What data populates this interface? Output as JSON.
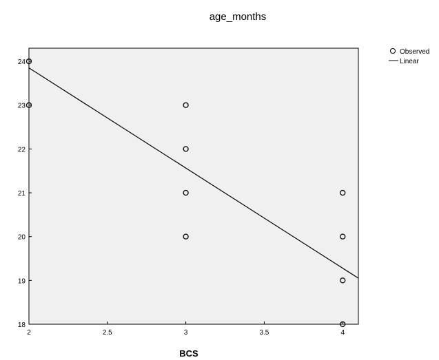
{
  "chart_data": {
    "type": "scatter",
    "title": "age_months",
    "xlabel": "BCS",
    "ylabel": "",
    "xlim": [
      2,
      4.1
    ],
    "ylim": [
      18,
      24.3
    ],
    "x_ticks": [
      2,
      2.5,
      3,
      3.5,
      4
    ],
    "x_tick_labels": [
      "2",
      "2.5",
      "3",
      "3.5",
      "4"
    ],
    "y_ticks": [
      18,
      19,
      20,
      21,
      22,
      23,
      24
    ],
    "y_tick_labels": [
      "18",
      "19",
      "20",
      "21",
      "22",
      "23",
      "24"
    ],
    "grid": false,
    "legend_position": "top-right",
    "background_color": "#f0f0f0",
    "series": [
      {
        "name": "Observed",
        "marker": "open-circle",
        "points": [
          {
            "x": 2,
            "y": 24
          },
          {
            "x": 2,
            "y": 23
          },
          {
            "x": 3,
            "y": 23
          },
          {
            "x": 3,
            "y": 22
          },
          {
            "x": 3,
            "y": 21
          },
          {
            "x": 3,
            "y": 20
          },
          {
            "x": 4,
            "y": 21
          },
          {
            "x": 4,
            "y": 20
          },
          {
            "x": 4,
            "y": 19
          },
          {
            "x": 4,
            "y": 18
          }
        ]
      },
      {
        "name": "Linear",
        "line": [
          {
            "x": 2,
            "y": 23.85
          },
          {
            "x": 4.1,
            "y": 19.05
          }
        ]
      }
    ]
  }
}
